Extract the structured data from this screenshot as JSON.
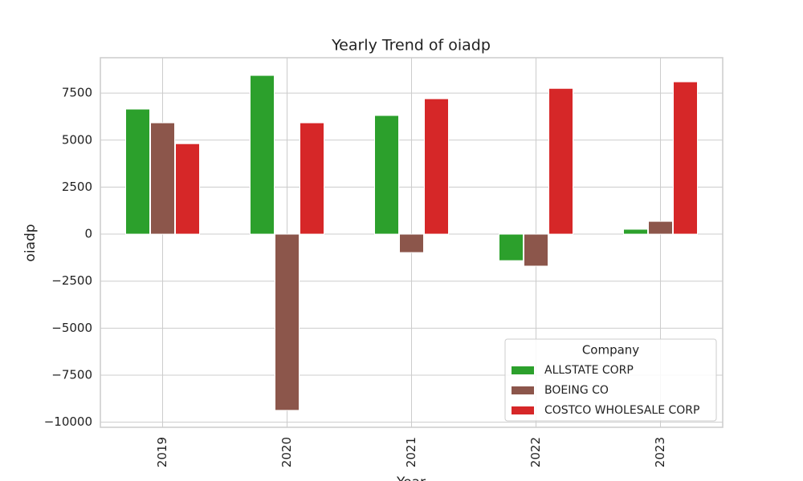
{
  "chart_data": {
    "type": "bar",
    "title": "Yearly Trend of oiadp",
    "x_label": "Year",
    "y_label": "oiadp",
    "categories": [
      "2019",
      "2020",
      "2021",
      "2022",
      "2023"
    ],
    "series": [
      {
        "name": "ALLSTATE CORP",
        "color": "#2ca02c",
        "values": [
          6650,
          8440,
          6310,
          -1410,
          260
        ]
      },
      {
        "name": "BOEING CO",
        "color": "#8c564b",
        "values": [
          5920,
          -9370,
          -980,
          -1700,
          680
        ]
      },
      {
        "name": "COSTCO WHOLESALE CORP",
        "color": "#d62728",
        "values": [
          4810,
          5920,
          7200,
          7750,
          8100
        ]
      }
    ],
    "legend_title": "Company",
    "legend": "lower right",
    "ylim": [
      -10270,
      9380
    ],
    "yticks": [
      {
        "value": -10000,
        "label": "−10000"
      },
      {
        "value": -7500,
        "label": "−7500"
      },
      {
        "value": -5000,
        "label": "−5000"
      },
      {
        "value": -2500,
        "label": "−2500"
      },
      0,
      2500,
      5000,
      7500
    ],
    "grid": true
  }
}
